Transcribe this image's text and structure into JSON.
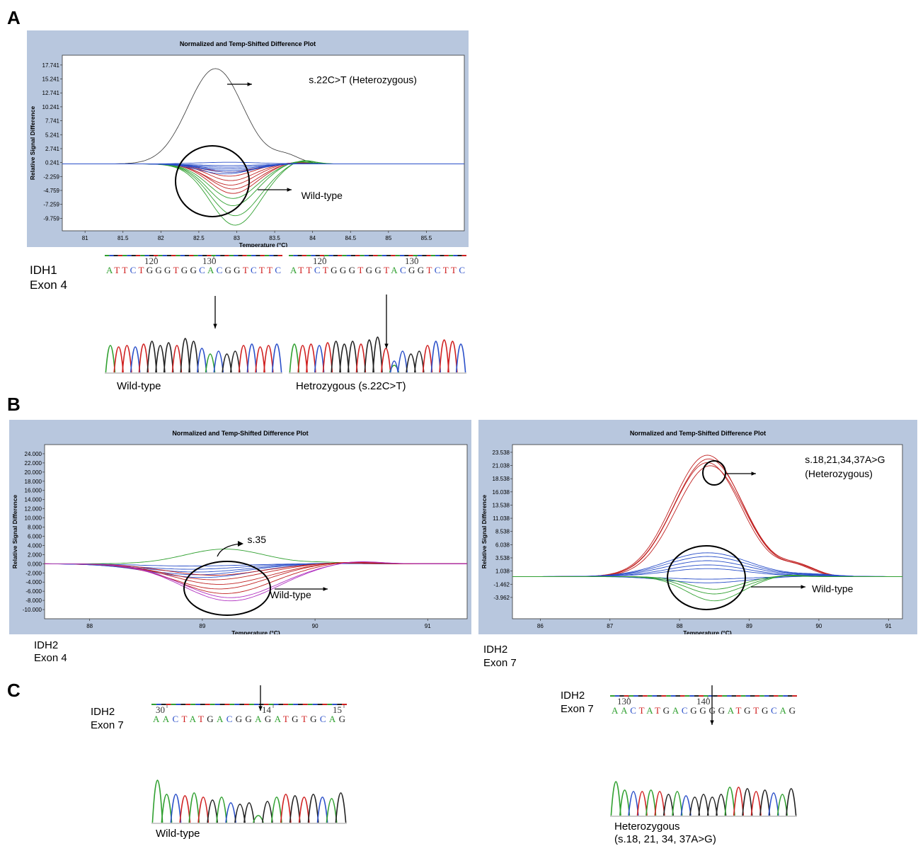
{
  "panels": {
    "a": "A",
    "b": "B",
    "c": "C"
  },
  "colors": {
    "frame": "#b8c7de",
    "blue": "#2a4fc9",
    "red": "#c02020",
    "green": "#30a030",
    "magenta": "#b030c0",
    "black": "#333333",
    "A": "#30a030",
    "C": "#2a4fc9",
    "G": "#222222",
    "T": "#d02020"
  },
  "chart_data": [
    {
      "id": "A",
      "type": "line",
      "title": "Normalized and Temp-Shifted Difference Plot",
      "xlabel": "Temperature (°C)",
      "ylabel": "Relative Signal Difference",
      "xlim": [
        80.7,
        86.0
      ],
      "ylim": [
        -12.0,
        19.5
      ],
      "x_ticks": [
        "81",
        "81.5",
        "82",
        "82.5",
        "83",
        "83.5",
        "84",
        "84.5",
        "85",
        "85.5"
      ],
      "x_tick_values": [
        81,
        81.5,
        82,
        82.5,
        83,
        83.5,
        84,
        84.5,
        85,
        85.5
      ],
      "y_ticks": [
        "17.741",
        "15.241",
        "12.741",
        "10.241",
        "7.741",
        "5.241",
        "2.741",
        "0.241",
        "-2.259",
        "-4.759",
        "-7.259",
        "-9.759"
      ],
      "y_tick_values": [
        17.741,
        15.241,
        12.741,
        10.241,
        7.741,
        5.241,
        2.741,
        0.241,
        -2.259,
        -4.759,
        -7.259,
        -9.759
      ],
      "grid": false,
      "annotations": [
        {
          "text": "s.22C>T (Heterozygous)",
          "x": 83.95,
          "y": 14.5
        },
        {
          "text": "Wild-type",
          "x": 83.85,
          "y": -6.3
        }
      ],
      "series": [
        {
          "color": "black",
          "curves": [
            {
              "center": 82.72,
              "amp": 17.1,
              "width": 0.36
            }
          ]
        },
        {
          "color": "red",
          "curves": [
            {
              "center": 82.9,
              "amp": -1.5,
              "width": 0.3
            },
            {
              "center": 82.9,
              "amp": -2.2,
              "width": 0.3
            },
            {
              "center": 82.92,
              "amp": -3.0,
              "width": 0.3
            },
            {
              "center": 82.92,
              "amp": -3.8,
              "width": 0.31
            },
            {
              "center": 82.95,
              "amp": -4.5,
              "width": 0.31
            },
            {
              "center": 82.95,
              "amp": -5.3,
              "width": 0.31
            }
          ]
        },
        {
          "color": "green",
          "curves": [
            {
              "center": 82.95,
              "amp": -6.2,
              "width": 0.32
            },
            {
              "center": 82.95,
              "amp": -7.5,
              "width": 0.32
            },
            {
              "center": 82.98,
              "amp": -9.3,
              "width": 0.33
            },
            {
              "center": 82.98,
              "amp": -11.0,
              "width": 0.33
            }
          ]
        },
        {
          "color": "blue",
          "curves": [
            {
              "center": 82.9,
              "amp": 0.3,
              "width": 0.4
            },
            {
              "center": 82.9,
              "amp": -0.3,
              "width": 0.4
            },
            {
              "center": 82.9,
              "amp": -0.6,
              "width": 0.38
            },
            {
              "center": 82.9,
              "amp": -0.9,
              "width": 0.37
            },
            {
              "center": 82.9,
              "amp": -1.2,
              "width": 0.36
            },
            {
              "center": 82.9,
              "amp": -1.5,
              "width": 0.35
            },
            {
              "center": 82.85,
              "amp": -1.8,
              "width": 0.34
            }
          ]
        }
      ]
    },
    {
      "id": "B-exon4",
      "type": "line",
      "title": "Normalized and Temp-Shifted Difference Plot",
      "xlabel": "Temperature (°C)",
      "ylabel": "Relative Signal Difference",
      "xlim": [
        87.6,
        91.35
      ],
      "ylim": [
        -12.0,
        26.0
      ],
      "x_ticks": [
        "88",
        "89",
        "90",
        "91"
      ],
      "x_tick_values": [
        88,
        89,
        90,
        91
      ],
      "y_ticks": [
        "24.000",
        "22.000",
        "20.000",
        "18.000",
        "16.000",
        "14.000",
        "12.000",
        "10.000",
        "8.000",
        "6.000",
        "4.000",
        "2.000",
        "0.000",
        "-2.000",
        "-4.000",
        "-6.000",
        "-8.000",
        "-10.000"
      ],
      "y_tick_values": [
        24,
        22,
        20,
        18,
        16,
        14,
        12,
        10,
        8,
        6,
        4,
        2,
        0,
        -2,
        -4,
        -6,
        -8,
        -10
      ],
      "grid": false,
      "annotations": [
        {
          "text": "s.35",
          "x": 89.4,
          "y": 4.5
        },
        {
          "text": "Wild-type",
          "x": 89.6,
          "y": -7.5
        }
      ],
      "series": [
        {
          "color": "green",
          "curves": [
            {
              "center": 89.2,
              "amp": 3.2,
              "width": 0.35
            }
          ]
        },
        {
          "color": "blue",
          "curves": [
            {
              "center": 88.9,
              "amp": -0.5,
              "width": 0.45
            },
            {
              "center": 88.9,
              "amp": -1.2,
              "width": 0.45
            },
            {
              "center": 88.95,
              "amp": -1.8,
              "width": 0.45
            },
            {
              "center": 88.95,
              "amp": -2.4,
              "width": 0.44
            },
            {
              "center": 89.0,
              "amp": -3.0,
              "width": 0.44
            }
          ]
        },
        {
          "color": "red",
          "curves": [
            {
              "center": 89.1,
              "amp": -2.5,
              "width": 0.42
            },
            {
              "center": 89.1,
              "amp": -3.5,
              "width": 0.42
            },
            {
              "center": 89.15,
              "amp": -4.5,
              "width": 0.42
            },
            {
              "center": 89.15,
              "amp": -5.5,
              "width": 0.42
            },
            {
              "center": 89.2,
              "amp": -6.5,
              "width": 0.42
            }
          ]
        },
        {
          "color": "magenta",
          "curves": [
            {
              "center": 89.25,
              "amp": -7.4,
              "width": 0.42
            },
            {
              "center": 89.25,
              "amp": -8.1,
              "width": 0.42
            }
          ]
        }
      ]
    },
    {
      "id": "B-exon7",
      "type": "line",
      "title": "Normalized and Temp-Shifted Difference Plot",
      "xlabel": "Temperature (°C)",
      "ylabel": "Relative Signal Difference",
      "xlim": [
        85.6,
        91.2
      ],
      "ylim": [
        -8.0,
        25.0
      ],
      "x_ticks": [
        "86",
        "87",
        "88",
        "89",
        "90",
        "91"
      ],
      "x_tick_values": [
        86,
        87,
        88,
        89,
        90,
        91
      ],
      "y_ticks": [
        "23.538",
        "21.038",
        "18.538",
        "16.038",
        "13.538",
        "11.038",
        "8.538",
        "6.038",
        "3.538",
        "1.038",
        "-1.462",
        "-3.962"
      ],
      "y_tick_values": [
        23.538,
        21.038,
        18.538,
        16.038,
        13.538,
        11.038,
        8.538,
        6.038,
        3.538,
        1.038,
        -1.462,
        -3.962
      ],
      "grid": false,
      "annotations": [
        {
          "text": "s.18,21,34,37A>G",
          "x": 89.8,
          "y": 21.5
        },
        {
          "text": "(Heterozygous)",
          "x": 89.8,
          "y": 18.8
        },
        {
          "text": "Wild-type",
          "x": 89.9,
          "y": -3.0
        }
      ],
      "series": [
        {
          "color": "red",
          "curves": [
            {
              "center": 88.4,
              "amp": 23.0,
              "width": 0.5
            },
            {
              "center": 88.42,
              "amp": 22.3,
              "width": 0.5
            },
            {
              "center": 88.4,
              "amp": 21.6,
              "width": 0.49
            },
            {
              "center": 88.44,
              "amp": 21.0,
              "width": 0.49
            }
          ]
        },
        {
          "color": "blue",
          "curves": [
            {
              "center": 88.4,
              "amp": 4.5,
              "width": 0.6
            },
            {
              "center": 88.4,
              "amp": 3.8,
              "width": 0.6
            },
            {
              "center": 88.4,
              "amp": 3.0,
              "width": 0.6
            },
            {
              "center": 88.4,
              "amp": 2.2,
              "width": 0.58
            },
            {
              "center": 88.4,
              "amp": 1.5,
              "width": 0.58
            },
            {
              "center": 88.4,
              "amp": -0.5,
              "width": 0.55
            },
            {
              "center": 88.4,
              "amp": -1.2,
              "width": 0.55
            }
          ]
        },
        {
          "color": "green",
          "curves": [
            {
              "center": 88.5,
              "amp": -3.3,
              "width": 0.4
            },
            {
              "center": 88.5,
              "amp": -4.6,
              "width": 0.4
            },
            {
              "center": 88.5,
              "amp": -2.4,
              "width": 0.38
            }
          ]
        }
      ]
    }
  ],
  "section_a": {
    "gene_label": "IDH1",
    "exon_label": "Exon 4",
    "wildtype_caption": "Wild-type",
    "mutant_caption": "Hetrozygous (s.22C>T)",
    "seq_left": {
      "ticks": [
        "120",
        "130"
      ],
      "bases": "ATTCTGGGTGGCACGGTCTTC"
    },
    "seq_right": {
      "ticks": [
        "120",
        "130"
      ],
      "bases": "ATTCTGGGTGGTACGGTCTTC"
    }
  },
  "section_b": {
    "left_gene": "IDH2",
    "left_exon": "Exon 4",
    "right_gene": "IDH2",
    "right_exon": "Exon 7"
  },
  "section_c": {
    "left_gene": "IDH2",
    "left_exon": "Exon 7",
    "right_gene": "IDH2",
    "right_exon": "Exon 7",
    "left_caption": "Wild-type",
    "right_caption_1": "Heterozygous",
    "right_caption_2": "(s.18, 21, 34, 37A>G)",
    "seq_left": {
      "ticks": [
        "30",
        "14",
        "15"
      ],
      "bases": "AACTATGACGGAGATGTGCAG"
    },
    "seq_right": {
      "ticks": [
        "130",
        "140"
      ],
      "bases": "AACTATGACGGGGATGTGCAG"
    }
  }
}
